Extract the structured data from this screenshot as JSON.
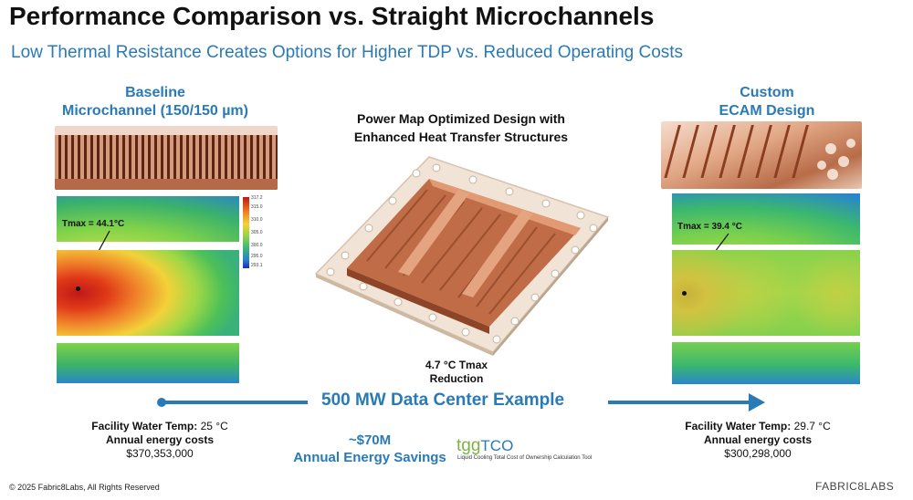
{
  "header": {
    "title": "Performance Comparison vs. Straight Microchannels",
    "subtitle": "Low Thermal Resistance Creates Options for Higher TDP vs. Reduced Operating Costs"
  },
  "left": {
    "heading_line1": "Baseline",
    "heading_line2": "Microchannel (150/150 µm)",
    "tmax_label": "Tmax = 44.1°C",
    "colorbar_ticks": [
      "317.2",
      "315.0",
      "310.0",
      "305.0",
      "300.0",
      "295.0",
      "293.1"
    ],
    "facility_label": "Facility Water Temp:",
    "facility_value": "25 °C",
    "energy_label": "Annual energy costs",
    "energy_value": "$370,353,000"
  },
  "center": {
    "heading_line1": "Power Map Optimized Design with",
    "heading_line2": "Enhanced Heat Transfer Structures",
    "reduction_line1": "4.7 °C Tmax",
    "reduction_line2": "Reduction",
    "example_label": "500 MW Data Center Example",
    "savings_amount": "~$70M",
    "savings_label": "Annual Energy Savings",
    "tool_logo_tgg": "tgg",
    "tool_logo_tco": "TCO",
    "tool_caption": "Liquid Cooling Total Cost of Ownership Calculation Tool"
  },
  "right": {
    "heading_line1": "Custom",
    "heading_line2": "ECAM Design",
    "tmax_label": "Tmax = 39.4 °C",
    "facility_label": "Facility Water Temp:",
    "facility_value": "29.7 °C",
    "energy_label": "Annual energy costs",
    "energy_value": "$300,298,000"
  },
  "footer": {
    "copyright": "© 2025 Fabric8Labs, All Rights Reserved",
    "brand": "FABRIC8LABS"
  },
  "colors": {
    "accent_blue": "#2a7ab5",
    "copper": "#c8724a"
  }
}
